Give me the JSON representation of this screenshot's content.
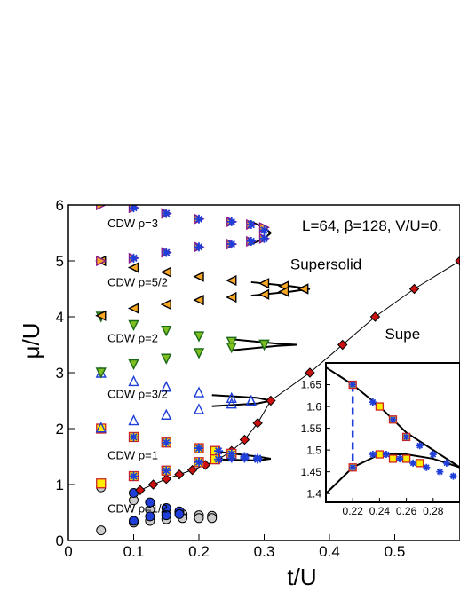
{
  "chart_data": [
    {
      "type": "scatter",
      "title": "L=64, β=128, V/U=0.",
      "xlabel": "t/U",
      "ylabel": "μ/U",
      "xlim": [
        0,
        0.6
      ],
      "ylim": [
        0,
        6
      ],
      "x_ticks": [
        "0",
        "0.1",
        "0.2",
        "0.3",
        "0.4",
        "0.5"
      ],
      "y_ticks": [
        "0",
        "1",
        "2",
        "3",
        "4",
        "5",
        "6"
      ],
      "region_labels": [
        {
          "text": "CDW",
          "density": "ρ=3",
          "x": 0.06,
          "y": 5.6
        },
        {
          "text": "CDW",
          "density": "ρ=5/2",
          "x": 0.06,
          "y": 4.55
        },
        {
          "text": "CDW",
          "density": "ρ=2",
          "x": 0.06,
          "y": 3.55
        },
        {
          "text": "CDW",
          "density": "ρ=3/2",
          "x": 0.06,
          "y": 2.55
        },
        {
          "text": "CDW",
          "density": "ρ=1",
          "x": 0.06,
          "y": 1.45
        },
        {
          "text": "CDW",
          "density": "ρ=1/2",
          "x": 0.06,
          "y": 0.5
        },
        {
          "text": "Supersolid",
          "x": 0.34,
          "y": 4.85
        },
        {
          "text": "Supe",
          "x": 0.485,
          "y": 3.6
        }
      ],
      "series": [
        {
          "marker": "circle-gray",
          "color": "#cccccc",
          "x": [
            0.05,
            0.1,
            0.125,
            0.15,
            0.175,
            0.2,
            0.22
          ],
          "y": [
            0.95,
            0.72,
            0.55,
            0.5,
            0.47,
            0.45,
            0.44
          ]
        },
        {
          "marker": "circle-gray",
          "color": "#cccccc",
          "x": [
            0.05,
            0.1,
            0.125,
            0.15,
            0.175,
            0.2,
            0.22
          ],
          "y": [
            0.18,
            0.32,
            0.35,
            0.38,
            0.4,
            0.4,
            0.4
          ]
        },
        {
          "marker": "circle-blue",
          "color": "#1f3fd8",
          "x": [
            0.1,
            0.125,
            0.15,
            0.17
          ],
          "y": [
            0.85,
            0.68,
            0.58,
            0.52
          ]
        },
        {
          "marker": "circle-blue",
          "color": "#1f3fd8",
          "x": [
            0.1,
            0.125,
            0.15,
            0.17
          ],
          "y": [
            0.35,
            0.43,
            0.45,
            0.47
          ]
        },
        {
          "marker": "diamond-red",
          "color": "#cc1111",
          "line": true,
          "x": [
            0.11,
            0.13,
            0.15,
            0.17,
            0.19,
            0.21,
            0.23,
            0.25,
            0.27,
            0.29,
            0.31,
            0.37,
            0.42,
            0.47,
            0.53,
            0.6
          ],
          "y": [
            0.9,
            1.0,
            1.1,
            1.18,
            1.26,
            1.35,
            1.45,
            1.6,
            1.8,
            2.1,
            2.5,
            3.0,
            3.5,
            4.0,
            4.5,
            5.0
          ]
        },
        {
          "marker": "square-yellow",
          "color": "#ffee00",
          "stroke": "#cc2222",
          "x": [
            0.05,
            0.1,
            0.15,
            0.2,
            0.225,
            0.25,
            0.05,
            0.1,
            0.15,
            0.2,
            0.225
          ],
          "y": [
            2.0,
            1.85,
            1.75,
            1.65,
            1.6,
            1.55,
            1.02,
            1.15,
            1.25,
            1.4,
            1.45
          ]
        },
        {
          "marker": "star-blue",
          "color": "#1f3fd8",
          "x": [
            0.1,
            0.15,
            0.2,
            0.23,
            0.25,
            0.27,
            0.29,
            0.1,
            0.15,
            0.2,
            0.23,
            0.25,
            0.27,
            0.29
          ],
          "y": [
            1.85,
            1.75,
            1.65,
            1.6,
            1.55,
            1.5,
            1.47,
            1.15,
            1.25,
            1.4,
            1.45,
            1.47,
            1.47,
            1.45
          ]
        },
        {
          "marker": "triangle-up-blue",
          "color": "#1f3fd8",
          "x": [
            0.05,
            0.1,
            0.15,
            0.2,
            0.25,
            0.28,
            0.05,
            0.1,
            0.15,
            0.2,
            0.25,
            0.28
          ],
          "y": [
            3.0,
            2.85,
            2.75,
            2.65,
            2.55,
            2.5,
            2.02,
            2.15,
            2.25,
            2.35,
            2.45,
            2.5
          ]
        },
        {
          "marker": "triangle-down-green",
          "color": "#7fbf1f",
          "stroke": "#1a6a1a",
          "x": [
            0.05,
            0.1,
            0.15,
            0.2,
            0.25,
            0.3,
            0.05,
            0.1,
            0.15,
            0.2,
            0.25,
            0.3
          ],
          "y": [
            4.0,
            3.85,
            3.75,
            3.65,
            3.55,
            3.5,
            3.0,
            3.15,
            3.25,
            3.35,
            3.45,
            3.5
          ]
        },
        {
          "marker": "triangle-left-orange",
          "color": "#f9a825",
          "x": [
            0.05,
            0.1,
            0.15,
            0.2,
            0.25,
            0.3,
            0.33,
            0.36,
            0.05,
            0.1,
            0.15,
            0.2,
            0.25,
            0.3,
            0.33,
            0.36
          ],
          "y": [
            5.0,
            4.88,
            4.8,
            4.72,
            4.65,
            4.6,
            4.55,
            4.5,
            4.02,
            4.15,
            4.22,
            4.3,
            4.35,
            4.4,
            4.45,
            4.5
          ]
        },
        {
          "marker": "triangle-right-orange",
          "color": "#f9a825",
          "stroke": "#8a1a8a",
          "x": [
            0.05,
            0.1,
            0.15,
            0.2,
            0.25,
            0.28,
            0.3,
            0.05,
            0.1,
            0.15,
            0.2,
            0.25,
            0.28,
            0.3
          ],
          "y": [
            6.0,
            5.95,
            5.85,
            5.75,
            5.7,
            5.65,
            5.6,
            5.0,
            5.05,
            5.15,
            5.25,
            5.3,
            5.35,
            5.4
          ]
        },
        {
          "marker": "star-blue",
          "color": "#1f3fd8",
          "x": [
            0.1,
            0.15,
            0.2,
            0.25,
            0.28,
            0.3,
            0.1,
            0.15,
            0.2,
            0.25,
            0.28,
            0.3
          ],
          "y": [
            5.95,
            5.85,
            5.75,
            5.7,
            5.65,
            5.55,
            5.05,
            5.15,
            5.25,
            5.3,
            5.35,
            5.4
          ]
        }
      ],
      "phase_boundaries": [
        {
          "x": [
            0.22,
            0.29,
            0.31,
            0.29,
            0.22
          ],
          "y": [
            1.6,
            1.5,
            1.46,
            1.43,
            1.45
          ]
        },
        {
          "x": [
            0.22,
            0.29,
            0.31,
            0.29,
            0.22
          ],
          "y": [
            2.6,
            2.55,
            2.5,
            2.45,
            2.4
          ]
        },
        {
          "x": [
            0.25,
            0.32,
            0.35,
            0.32,
            0.25
          ],
          "y": [
            3.6,
            3.52,
            3.5,
            3.48,
            3.4
          ]
        },
        {
          "x": [
            0.28,
            0.34,
            0.37,
            0.34,
            0.28
          ],
          "y": [
            4.62,
            4.55,
            4.5,
            4.45,
            4.38
          ]
        },
        {
          "x": [
            0.28,
            0.3,
            0.31,
            0.3,
            0.28
          ],
          "y": [
            5.7,
            5.6,
            5.5,
            5.4,
            5.3
          ]
        }
      ]
    },
    {
      "type": "scatter",
      "inset": true,
      "xlim": [
        0.2,
        0.3
      ],
      "ylim": [
        1.38,
        1.7
      ],
      "x_ticks": [
        "0.22",
        "0.24",
        "0.26",
        "0.28"
      ],
      "y_ticks": [
        "1.4",
        "1.45",
        "1.5",
        "1.55",
        "1.6",
        "1.65"
      ],
      "vertical_marker_x": 0.22,
      "series": [
        {
          "marker": "square-yellow",
          "color": "#ffee00",
          "stroke": "#cc2222",
          "x": [
            0.22,
            0.24,
            0.25,
            0.26,
            0.22,
            0.24,
            0.25,
            0.26,
            0.27
          ],
          "y": [
            1.65,
            1.6,
            1.57,
            1.53,
            1.46,
            1.49,
            1.48,
            1.48,
            1.47
          ]
        },
        {
          "marker": "star-blue",
          "color": "#1f3fd8",
          "x": [
            0.22,
            0.235,
            0.25,
            0.26,
            0.27,
            0.28,
            0.29,
            0.22,
            0.235,
            0.245,
            0.255,
            0.265,
            0.275,
            0.285,
            0.295
          ],
          "y": [
            1.65,
            1.61,
            1.57,
            1.53,
            1.51,
            1.49,
            1.47,
            1.46,
            1.49,
            1.49,
            1.48,
            1.47,
            1.46,
            1.45,
            1.44
          ]
        }
      ],
      "boundary_lines": [
        {
          "x": [
            0.2,
            0.22,
            0.24,
            0.26,
            0.28,
            0.3
          ],
          "y": [
            1.69,
            1.65,
            1.6,
            1.54,
            1.5,
            1.46
          ]
        },
        {
          "x": [
            0.2,
            0.22,
            0.24,
            0.26,
            0.28,
            0.3
          ],
          "y": [
            1.4,
            1.46,
            1.49,
            1.49,
            1.48,
            1.46
          ]
        }
      ]
    }
  ]
}
